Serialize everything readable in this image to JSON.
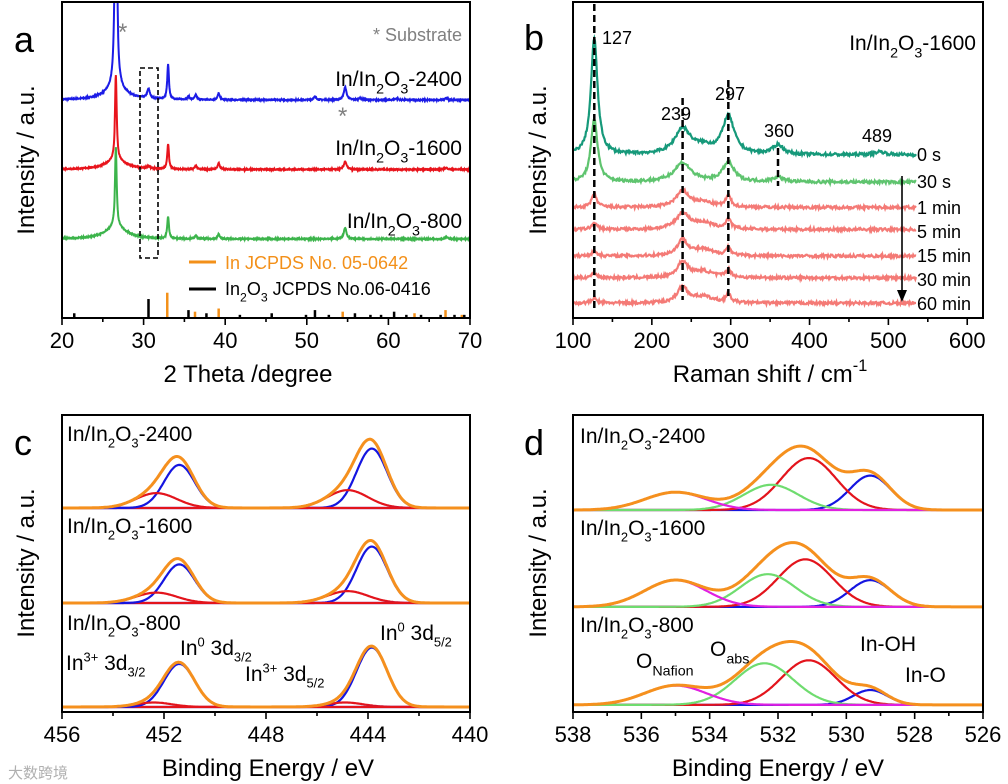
{
  "figure": {
    "panel_labels": [
      "a",
      "b",
      "c",
      "d"
    ],
    "watermark": "大数跨境"
  },
  "chart_data": [
    {
      "id": "a",
      "type": "line",
      "title": "",
      "xlabel": "2 Theta /degree",
      "ylabel": "Intensity / a.u.",
      "xlim": [
        20,
        70
      ],
      "ylim": [
        0,
        100
      ],
      "xticks": [
        20,
        30,
        40,
        50,
        60,
        70
      ],
      "minor_step": 5,
      "grid": false,
      "shape": "lorentz",
      "series": [
        {
          "name": "In/In_{2}O_{3}-2400",
          "color": "#1c1ce6",
          "offset": 69,
          "peaks": [
            [
              26.6,
              110,
              0.12
            ],
            [
              26.6,
              4,
              1.5
            ],
            [
              30.6,
              3,
              0.2
            ],
            [
              33.0,
              11,
              0.12
            ],
            [
              35.5,
              1,
              0.15
            ],
            [
              36.4,
              1.5,
              0.15
            ],
            [
              39.2,
              2,
              0.15
            ],
            [
              51.0,
              1,
              0.2
            ],
            [
              54.7,
              4,
              0.2
            ],
            [
              56.5,
              0.6,
              0.2
            ],
            [
              61.0,
              0.5,
              0.2
            ],
            [
              67.1,
              0.6,
              0.2
            ]
          ]
        },
        {
          "name": "In/In_{2}O_{3}-1600",
          "color": "#e8141c",
          "offset": 47,
          "peaks": [
            [
              26.6,
              27,
              0.12
            ],
            [
              26.6,
              3,
              1.5
            ],
            [
              30.6,
              0.8,
              0.2
            ],
            [
              33.0,
              8,
              0.12
            ],
            [
              36.4,
              1.2,
              0.15
            ],
            [
              39.2,
              2,
              0.15
            ],
            [
              54.7,
              2.5,
              0.2
            ],
            [
              67.1,
              0.5,
              0.2
            ]
          ]
        },
        {
          "name": "In/In_{2}O_{3}-800",
          "color": "#3cb44b",
          "offset": 25,
          "peaks": [
            [
              26.6,
              25,
              0.12
            ],
            [
              26.6,
              4,
              1.5
            ],
            [
              33.0,
              7,
              0.12
            ],
            [
              36.4,
              1,
              0.15
            ],
            [
              39.2,
              1.5,
              0.15
            ],
            [
              54.7,
              3.5,
              0.2
            ],
            [
              67.1,
              0.6,
              0.2
            ]
          ]
        }
      ],
      "reference_sticks": [
        {
          "name": "In JCPDS No. 05-0642",
          "color": "#f39019",
          "sticks": [
            [
              32.9,
              8
            ],
            [
              36.3,
              2
            ],
            [
              39.2,
              3
            ],
            [
              54.4,
              2
            ],
            [
              63.2,
              1.5
            ],
            [
              67.0,
              2.5
            ],
            [
              69.0,
              1
            ]
          ]
        },
        {
          "name": "In_{2}O_{3} JCPDS No.06-0416",
          "color": "#000000",
          "sticks": [
            [
              21.5,
              1.5
            ],
            [
              30.6,
              6
            ],
            [
              35.5,
              2.5
            ],
            [
              37.7,
              1.5
            ],
            [
              41.8,
              1
            ],
            [
              45.7,
              1.5
            ],
            [
              49.9,
              1
            ],
            [
              51.0,
              2.5
            ],
            [
              52.7,
              1
            ],
            [
              55.9,
              1.5
            ],
            [
              57.8,
              1
            ],
            [
              59.1,
              1
            ],
            [
              60.7,
              2
            ],
            [
              62.2,
              1
            ],
            [
              64.0,
              1
            ],
            [
              66.4,
              1
            ],
            [
              68.1,
              1
            ],
            [
              69.3,
              1
            ]
          ]
        }
      ],
      "annotations": {
        "substrate_legend": "* Substrate",
        "asterisk": "*",
        "substrate_color": "#808080",
        "highlight_box_range": [
          29.5,
          31.5
        ]
      }
    },
    {
      "id": "b",
      "type": "line",
      "title": "In/In_{2}O_{3}-1600",
      "xlabel": "Raman shift / cm^{-1}",
      "ylabel": "Intensity / a.u.",
      "xlim": [
        100,
        620
      ],
      "ylim": [
        0,
        100
      ],
      "xticks": [
        100,
        200,
        300,
        400,
        500,
        600
      ],
      "minor_step": 50,
      "grid": false,
      "shape": "lorentz",
      "trace_range": [
        100,
        535
      ],
      "series": [
        {
          "name": "0 s",
          "color": "#16997a",
          "offset": 51.6,
          "peaks": [
            [
              127,
              37,
              5
            ],
            [
              239,
              8,
              12
            ],
            [
              265,
              2,
              15
            ],
            [
              297,
              12,
              9
            ],
            [
              360,
              3,
              8
            ],
            [
              489,
              1,
              8
            ]
          ]
        },
        {
          "name": "30 s",
          "color": "#5fc46f",
          "offset": 43,
          "peaks": [
            [
              127,
              20,
              5
            ],
            [
              239,
              6,
              13
            ],
            [
              297,
              6,
              9
            ],
            [
              360,
              1.5,
              8
            ]
          ]
        },
        {
          "name": "1 min",
          "color": "#f47a76",
          "offset": 35,
          "peaks": [
            [
              127,
              4,
              4
            ],
            [
              239,
              5,
              10
            ],
            [
              265,
              1.5,
              15
            ],
            [
              297,
              3.5,
              4
            ]
          ]
        },
        {
          "name": "5 min",
          "color": "#f47a76",
          "offset": 28,
          "peaks": [
            [
              127,
              2,
              4
            ],
            [
              239,
              5,
              10
            ],
            [
              265,
              2,
              15
            ],
            [
              297,
              3,
              4
            ]
          ]
        },
        {
          "name": "15 min",
          "color": "#f47a76",
          "offset": 19.6,
          "peaks": [
            [
              127,
              1.5,
              4
            ],
            [
              239,
              5,
              8
            ],
            [
              265,
              2,
              15
            ],
            [
              297,
              2.5,
              4
            ]
          ]
        },
        {
          "name": "30 min",
          "color": "#f47a76",
          "offset": 12.7,
          "peaks": [
            [
              127,
              1.5,
              4
            ],
            [
              239,
              5,
              8
            ],
            [
              265,
              2,
              15
            ],
            [
              297,
              2.5,
              4
            ]
          ]
        },
        {
          "name": "60 min",
          "color": "#f47a76",
          "offset": 4.7,
          "peaks": [
            [
              127,
              1.5,
              4
            ],
            [
              239,
              5,
              8
            ],
            [
              265,
              2,
              15
            ],
            [
              297,
              2.5,
              4
            ]
          ]
        }
      ],
      "peak_markers": [
        {
          "label": "127",
          "x": 127
        },
        {
          "label": "239",
          "x": 239
        },
        {
          "label": "297",
          "x": 297
        },
        {
          "label": "360",
          "x": 360
        },
        {
          "label": "489",
          "x": 489
        }
      ]
    },
    {
      "id": "c",
      "type": "line",
      "title": "",
      "xlabel": "Binding Energy / eV",
      "ylabel": "Intensity / a.u.",
      "xlim": [
        456,
        440
      ],
      "ylim": [
        0,
        100
      ],
      "xticks": [
        456,
        452,
        448,
        444,
        440
      ],
      "minor_step": 2,
      "grid": false,
      "envelope_color": "#f5901e",
      "series": [
        {
          "name": "In/In_{2}O_{3}-2400",
          "offset": 68.7,
          "components": [
            {
              "name": "In^{0} 3d_{5/2}",
              "color": "#1515e0",
              "center": 443.85,
              "amp": 20,
              "sigma": 0.6
            },
            {
              "name": "In^{3+} 3d_{5/2}",
              "color": "#e3141c",
              "center": 444.8,
              "amp": 6,
              "sigma": 0.8
            },
            {
              "name": "In^{0} 3d_{3/2}",
              "color": "#1515e0",
              "center": 451.4,
              "amp": 14.5,
              "sigma": 0.6
            },
            {
              "name": "In^{3+} 3d_{3/2}",
              "color": "#e3141c",
              "center": 452.3,
              "amp": 5,
              "sigma": 0.8
            }
          ]
        },
        {
          "name": "In/In_{2}O_{3}-1600",
          "offset": 36.7,
          "components": [
            {
              "name": "In^{0} 3d_{5/2}",
              "color": "#1515e0",
              "center": 443.85,
              "amp": 19,
              "sigma": 0.6
            },
            {
              "name": "In^{3+} 3d_{5/2}",
              "color": "#e3141c",
              "center": 444.8,
              "amp": 4,
              "sigma": 0.8
            },
            {
              "name": "In^{0} 3d_{3/2}",
              "color": "#1515e0",
              "center": 451.4,
              "amp": 13,
              "sigma": 0.6
            },
            {
              "name": "In^{3+} 3d_{3/2}",
              "color": "#e3141c",
              "center": 452.3,
              "amp": 3.5,
              "sigma": 0.8
            }
          ]
        },
        {
          "name": "In/In_{2}O_{3}-800",
          "offset": 1.7,
          "components": [
            {
              "name": "In^{0} 3d_{5/2}",
              "color": "#1515e0",
              "center": 443.85,
              "amp": 20,
              "sigma": 0.6
            },
            {
              "name": "In^{3+} 3d_{5/2}",
              "color": "#e3141c",
              "center": 444.9,
              "amp": 1.5,
              "sigma": 0.7
            },
            {
              "name": "In^{0} 3d_{3/2}",
              "color": "#1515e0",
              "center": 451.4,
              "amp": 14.5,
              "sigma": 0.6
            },
            {
              "name": "In^{3+} 3d_{3/2}",
              "color": "#e3141c",
              "center": 452.4,
              "amp": 1.5,
              "sigma": 0.7
            }
          ]
        }
      ],
      "annotations": [
        "In^{3+} 3d_{3/2}",
        "In^{0} 3d_{3/2}",
        "In^{3+} 3d_{5/2}",
        "In^{0} 3d_{5/2}"
      ]
    },
    {
      "id": "d",
      "type": "line",
      "title": "",
      "xlabel": "Binding Energy / eV",
      "ylabel": "Intensity / a.u.",
      "xlim": [
        538,
        526
      ],
      "ylim": [
        0,
        100
      ],
      "xticks": [
        538,
        536,
        534,
        532,
        530,
        528,
        526
      ],
      "minor_step": 1,
      "grid": false,
      "envelope_color": "#f5901e",
      "series": [
        {
          "name": "In/In_{2}O_{3}-2400",
          "offset": 68,
          "components": [
            {
              "name": "In-O",
              "color": "#1515e0",
              "center": 529.3,
              "amp": 11.6,
              "sigma": 0.6
            },
            {
              "name": "In-OH",
              "color": "#e3141c",
              "center": 531.1,
              "amp": 17.5,
              "sigma": 0.8
            },
            {
              "name": "O_{abs}",
              "color": "#6fdc6f",
              "center": 532.2,
              "amp": 8.5,
              "sigma": 0.8
            },
            {
              "name": "O_{Nafion}",
              "color": "#e020e0",
              "center": 535.0,
              "amp": 6,
              "sigma": 0.9
            }
          ]
        },
        {
          "name": "In/In_{2}O_{3}-1600",
          "offset": 35.4,
          "components": [
            {
              "name": "In-O",
              "color": "#1515e0",
              "center": 529.3,
              "amp": 9,
              "sigma": 0.6
            },
            {
              "name": "In-OH",
              "color": "#e3141c",
              "center": 531.2,
              "amp": 16,
              "sigma": 0.8
            },
            {
              "name": "O_{abs}",
              "color": "#6fdc6f",
              "center": 532.3,
              "amp": 11,
              "sigma": 0.8
            },
            {
              "name": "O_{Nafion}",
              "color": "#e020e0",
              "center": 535.0,
              "amp": 9,
              "sigma": 0.9
            }
          ]
        },
        {
          "name": "In/In_{2}O_{3}-800",
          "offset": 2.4,
          "components": [
            {
              "name": "In-O",
              "color": "#1515e0",
              "center": 529.3,
              "amp": 5,
              "sigma": 0.5
            },
            {
              "name": "In-OH",
              "color": "#e3141c",
              "center": 531.1,
              "amp": 15,
              "sigma": 0.8
            },
            {
              "name": "O_{abs}",
              "color": "#6fdc6f",
              "center": 532.4,
              "amp": 14,
              "sigma": 0.85
            },
            {
              "name": "O_{Nafion}",
              "color": "#e020e0",
              "center": 535.0,
              "amp": 6.5,
              "sigma": 0.9
            }
          ]
        }
      ],
      "annotations": [
        "O_{Nafion}",
        "O_{abs}",
        "In-OH",
        "In-O"
      ]
    }
  ]
}
